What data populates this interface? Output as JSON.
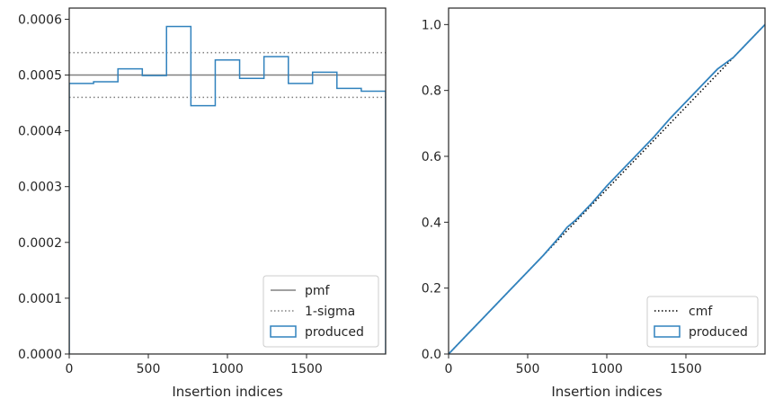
{
  "chart_data": [
    {
      "type": "histogram",
      "xlabel": "Insertion indices",
      "ylabel": "",
      "xlim": [
        0,
        2000
      ],
      "ylim": [
        0,
        0.00062
      ],
      "xticks": [
        0,
        500,
        1000,
        1500
      ],
      "xtick_labels": [
        "0",
        "500",
        "1000",
        "1500"
      ],
      "yticks": [
        0,
        0.0001,
        0.0002,
        0.0003,
        0.0004,
        0.0005,
        0.0006
      ],
      "ytick_labels": [
        "0.0000",
        "0.0001",
        "0.0002",
        "0.0003",
        "0.0004",
        "0.0005",
        "0.0006"
      ],
      "grid": false,
      "legend_position": "lower-right",
      "bin_edges": [
        0,
        154,
        308,
        462,
        615,
        769,
        923,
        1077,
        1231,
        1385,
        1538,
        1692,
        1846,
        2000
      ],
      "bin_values": [
        0.000485,
        0.000488,
        0.000511,
        0.000499,
        0.000587,
        0.000445,
        0.000527,
        0.000494,
        0.000533,
        0.000485,
        0.000505,
        0.000476,
        0.000471
      ],
      "pmf": 0.0005,
      "sigma_band": [
        0.00046,
        0.00054
      ],
      "colors": {
        "produced": "#3182bd",
        "pmf": "#808080",
        "sigma": "#808080"
      },
      "legend": [
        {
          "key": "pmf",
          "label": "pmf",
          "style": "solid-line"
        },
        {
          "key": "sigma",
          "label": "1-sigma",
          "style": "dotted-line"
        },
        {
          "key": "produced",
          "label": "produced",
          "style": "box"
        }
      ]
    },
    {
      "type": "line",
      "xlabel": "Insertion indices",
      "ylabel": "",
      "xlim": [
        0,
        2000
      ],
      "ylim": [
        0,
        1.05
      ],
      "xticks": [
        0,
        500,
        1000,
        1500
      ],
      "xtick_labels": [
        "0",
        "500",
        "1000",
        "1500"
      ],
      "yticks": [
        0,
        0.2,
        0.4,
        0.6,
        0.8,
        1.0
      ],
      "ytick_labels": [
        "0.0",
        "0.2",
        "0.4",
        "0.6",
        "0.8",
        "1.0"
      ],
      "grid": false,
      "legend_position": "lower-right",
      "cmf": {
        "x": [
          0,
          2000
        ],
        "y": [
          0,
          1.0
        ]
      },
      "produced": {
        "x": [
          0,
          100,
          200,
          300,
          400,
          500,
          600,
          700,
          750,
          800,
          900,
          1000,
          1100,
          1200,
          1300,
          1400,
          1500,
          1600,
          1700,
          1800,
          1900,
          2000
        ],
        "y": [
          0,
          0.05,
          0.1,
          0.15,
          0.2,
          0.25,
          0.3,
          0.355,
          0.385,
          0.405,
          0.455,
          0.51,
          0.56,
          0.61,
          0.66,
          0.715,
          0.765,
          0.815,
          0.865,
          0.9,
          0.95,
          1.0
        ]
      },
      "colors": {
        "produced": "#3182bd",
        "cmf": "#000000"
      },
      "legend": [
        {
          "key": "cmf",
          "label": "cmf",
          "style": "dotted-line"
        },
        {
          "key": "produced",
          "label": "produced",
          "style": "box"
        }
      ]
    }
  ]
}
